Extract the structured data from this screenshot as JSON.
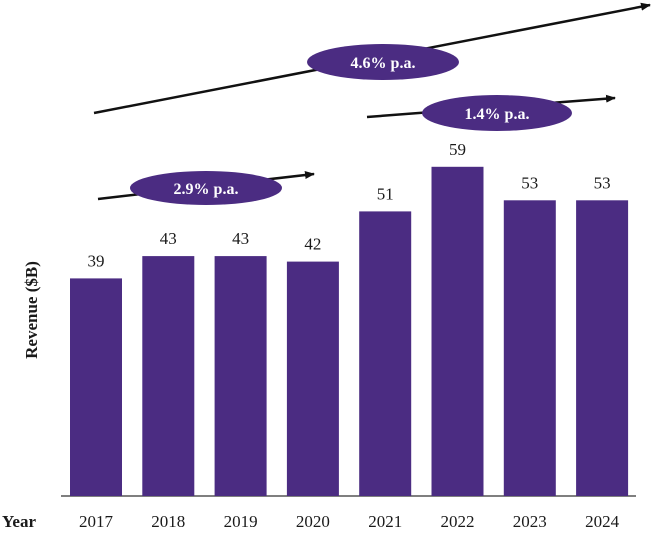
{
  "chart_data": {
    "type": "bar",
    "title": "",
    "xlabel": "Year",
    "ylabel": "Revenue ($B)",
    "ylim": [
      0,
      59
    ],
    "categories": [
      "2017",
      "2018",
      "2019",
      "2020",
      "2021",
      "2022",
      "2023",
      "2024"
    ],
    "values": [
      39,
      43,
      43,
      42,
      51,
      59,
      53,
      53
    ],
    "value_labels": [
      "39",
      "43",
      "43",
      "42",
      "51",
      "59",
      "53",
      "53"
    ],
    "bar_color": "#4b2c82",
    "annotations": [
      {
        "label": "2.9% p.a.",
        "from": "2017",
        "to": "2020"
      },
      {
        "label": "4.6% p.a.",
        "from": "2017",
        "to": "2024"
      },
      {
        "label": "1.4% p.a.",
        "from": "2021",
        "to": "2024"
      }
    ]
  }
}
